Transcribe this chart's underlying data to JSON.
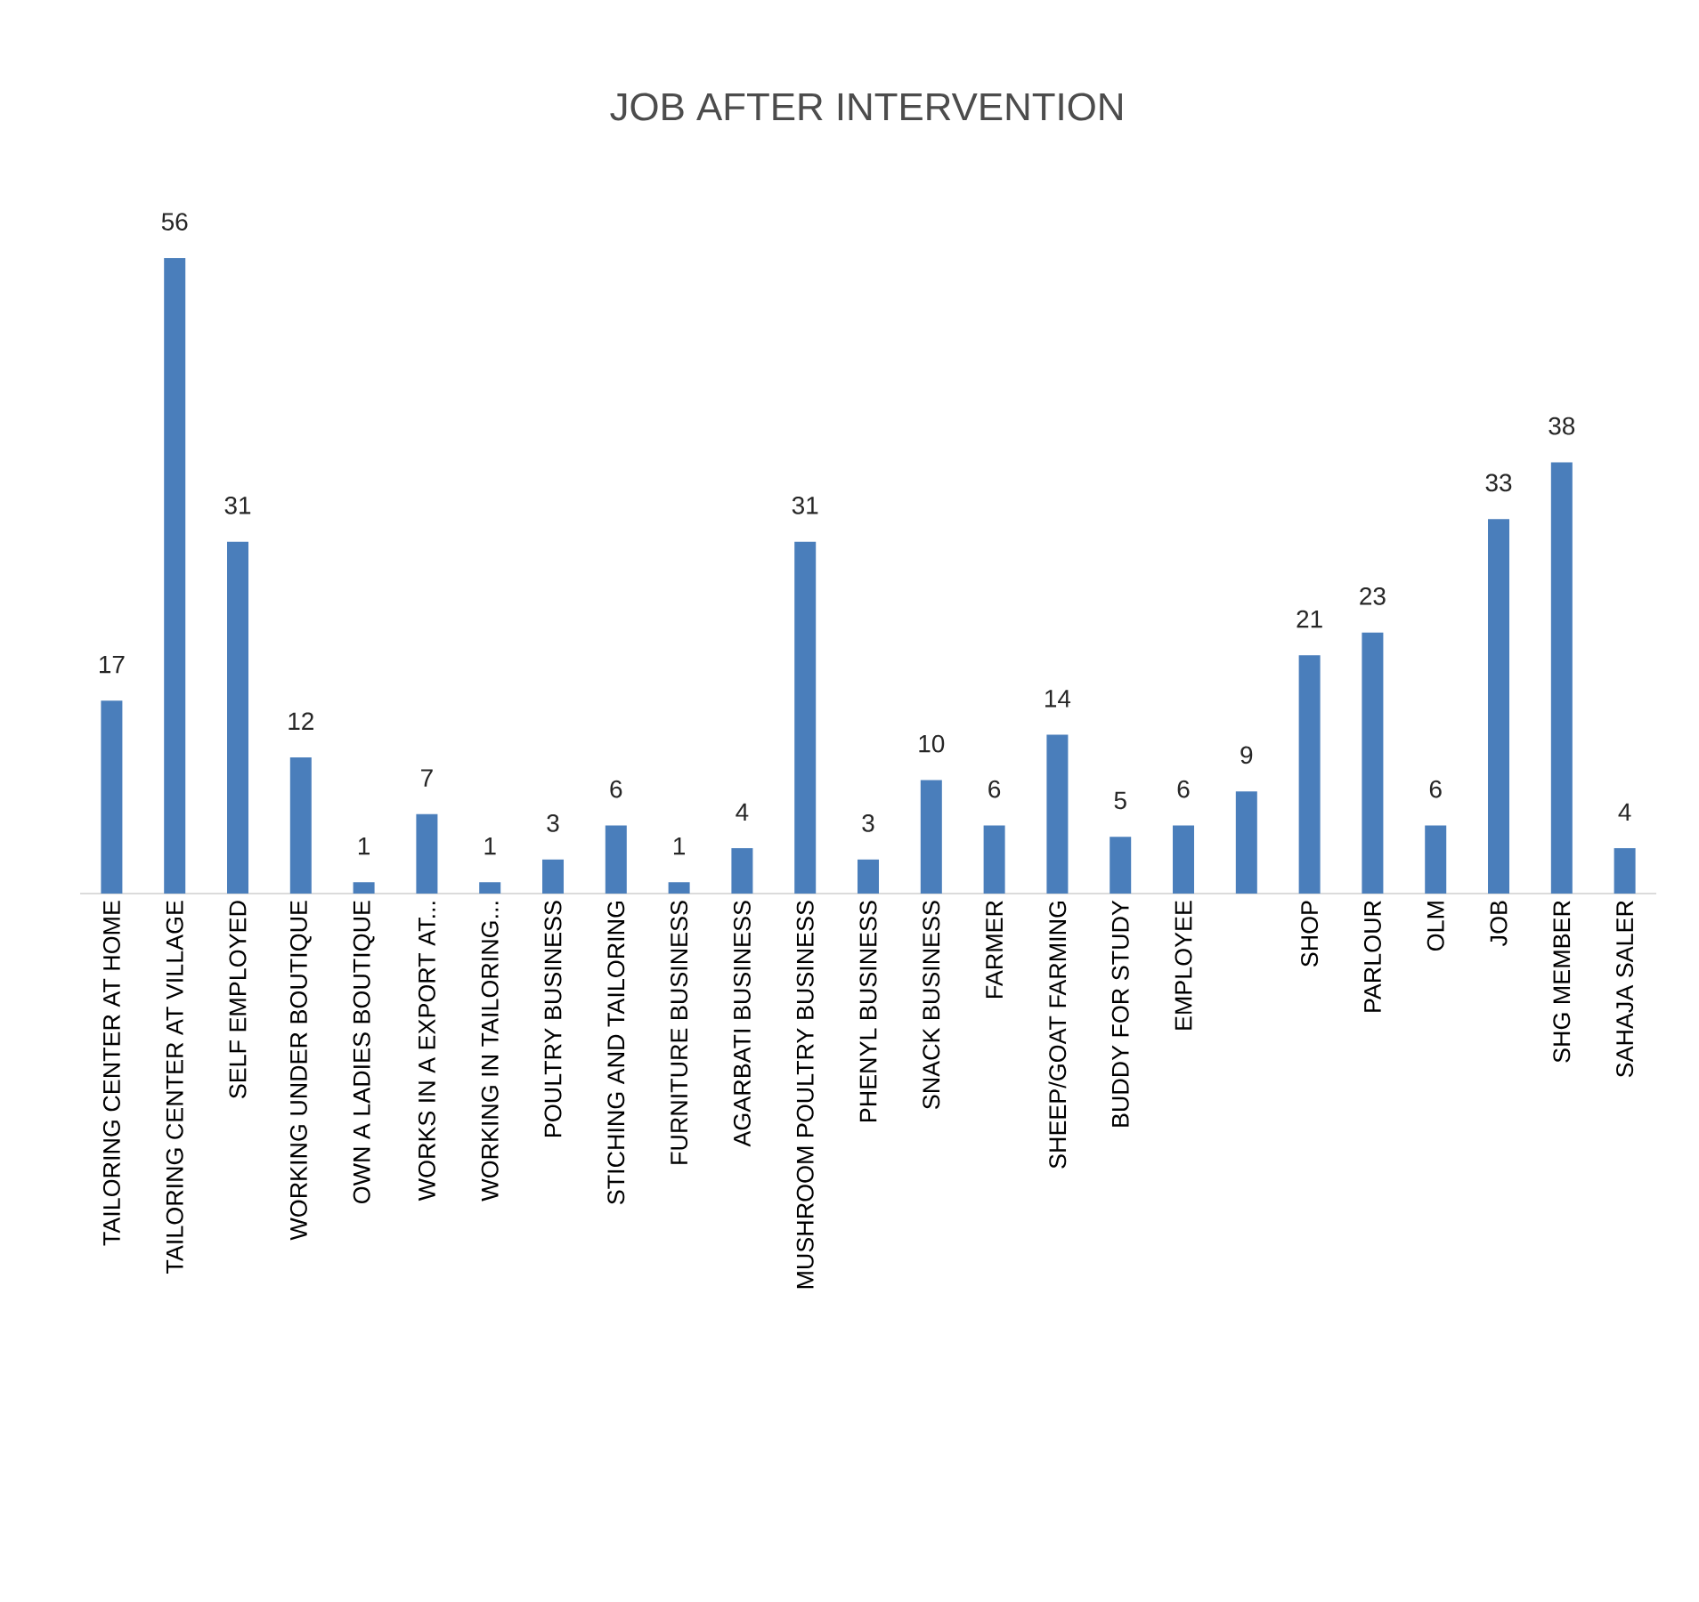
{
  "chart_data": {
    "type": "bar",
    "title": "JOB AFTER INTERVENTION",
    "categories": [
      "TAILORING CENTER AT HOME",
      "TAILORING CENTER AT VILLAGE",
      "SELF EMPLOYED",
      "WORKING UNDER BOUTIQUE",
      "OWN A LADIES BOUTIQUE",
      "WORKS IN A EXPORT AT...",
      "WORKING IN TAILORING...",
      "POULTRY BUSINESS",
      "STICHING AND TAILORING",
      "FURNITURE BUSINESS",
      "AGARBATI  BUSINESS",
      "MUSHROOM POULTRY BUSINESS",
      "PHENYL BUSINESS",
      "SNACK BUSINESS",
      "FARMER",
      "SHEEP/GOAT FARMING",
      "BUDDY FOR STUDY",
      "EMPLOYEE",
      null,
      "SHOP",
      "PARLOUR",
      "OLM",
      "JOB",
      "SHG MEMBER",
      "SAHAJA SALER"
    ],
    "values": [
      17,
      56,
      31,
      12,
      1,
      7,
      1,
      3,
      6,
      1,
      4,
      31,
      3,
      10,
      6,
      14,
      5,
      6,
      9,
      21,
      23,
      6,
      33,
      38,
      4
    ],
    "color": "#4a7ebb",
    "tick_labels": "x",
    "data_labels": true,
    "grid": false
  }
}
